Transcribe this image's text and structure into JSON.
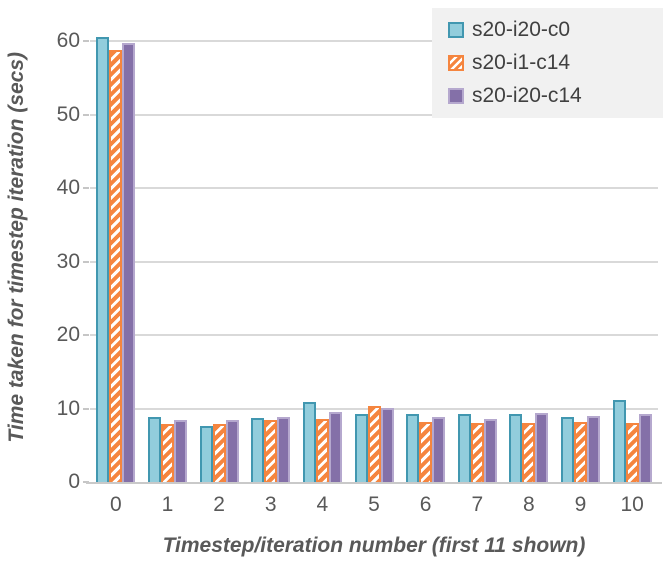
{
  "chart_data": {
    "type": "bar",
    "title": "",
    "xlabel": "Timestep/iteration number (first 11 shown)",
    "ylabel": "Time taken for timestep iteration (secs)",
    "categories": [
      "0",
      "1",
      "2",
      "3",
      "4",
      "5",
      "6",
      "7",
      "8",
      "9",
      "10"
    ],
    "series": [
      {
        "name": "s20-i20-c0",
        "pattern": "solid",
        "fill": "#92CDDC",
        "border": "#4197B0",
        "values": [
          60.6,
          8.8,
          7.7,
          8.7,
          10.9,
          9.2,
          9.3,
          9.2,
          9.2,
          8.8,
          11.2
        ]
      },
      {
        "name": "s20-i1-c14",
        "pattern": "diagonal-hatch",
        "fill": "#FFFFFF",
        "hatch_color": "#F5853F",
        "border": "#F5853F",
        "values": [
          58.8,
          7.9,
          7.9,
          8.4,
          8.6,
          10.4,
          8.2,
          8.1,
          8.1,
          8.2,
          8.0
        ]
      },
      {
        "name": "s20-i20-c14",
        "pattern": "solid",
        "fill": "#8470A8",
        "border": "#B5A8CE",
        "values": [
          59.8,
          8.5,
          8.5,
          8.8,
          9.5,
          10.1,
          8.8,
          8.6,
          9.4,
          9.0,
          9.2
        ]
      }
    ],
    "yticks": [
      "0",
      "10",
      "20",
      "30",
      "40",
      "50",
      "60"
    ],
    "ylim": [
      0,
      64
    ],
    "grid": true,
    "legend_position": "top-right"
  },
  "colors": {
    "text": "#595959",
    "legend_text": "#404040",
    "gridline": "#D9D9D9",
    "axis_line": "#C9C9C9",
    "tick": "#C6C6C6",
    "legend_bg": "#F1F1F1",
    "background": "#FFFFFF"
  }
}
